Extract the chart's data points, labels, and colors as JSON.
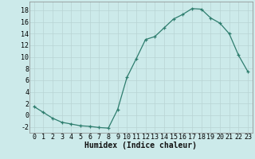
{
  "x": [
    0,
    1,
    2,
    3,
    4,
    5,
    6,
    7,
    8,
    9,
    10,
    11,
    12,
    13,
    14,
    15,
    16,
    17,
    18,
    19,
    20,
    21,
    22,
    23
  ],
  "y": [
    1.5,
    0.5,
    -0.5,
    -1.2,
    -1.5,
    -1.8,
    -1.9,
    -2.1,
    -2.2,
    1.0,
    6.5,
    9.7,
    13.0,
    13.5,
    15.0,
    16.5,
    17.3,
    18.3,
    18.2,
    16.7,
    15.8,
    14.0,
    10.3,
    7.5
  ],
  "line_color": "#2e7d6e",
  "marker": "+",
  "bg_color": "#cceaea",
  "grid_color": "#b8d4d4",
  "xlabel": "Humidex (Indice chaleur)",
  "ylim": [
    -3,
    19.5
  ],
  "xlim": [
    -0.5,
    23.5
  ],
  "yticks": [
    -2,
    0,
    2,
    4,
    6,
    8,
    10,
    12,
    14,
    16,
    18
  ],
  "xticks": [
    0,
    1,
    2,
    3,
    4,
    5,
    6,
    7,
    8,
    9,
    10,
    11,
    12,
    13,
    14,
    15,
    16,
    17,
    18,
    19,
    20,
    21,
    22,
    23
  ],
  "xlabel_fontsize": 7.0,
  "tick_fontsize": 6.0
}
